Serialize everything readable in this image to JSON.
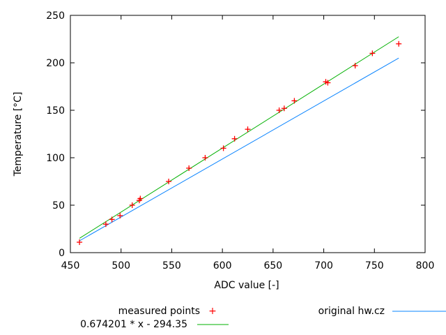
{
  "chart_data": {
    "type": "scatter",
    "title": "",
    "xlabel": "ADC value [-]",
    "ylabel": "Temperature [°C]",
    "xlim": [
      450,
      800
    ],
    "ylim": [
      0,
      250
    ],
    "xticks": [
      450,
      500,
      550,
      600,
      650,
      700,
      750,
      800
    ],
    "yticks": [
      0,
      50,
      100,
      150,
      200,
      250
    ],
    "grid": false,
    "legend_position": "bottom",
    "series": [
      {
        "name": "measured points",
        "kind": "points",
        "color": "#ff0000",
        "points": [
          [
            459,
            11
          ],
          [
            485,
            30
          ],
          [
            491,
            35
          ],
          [
            499,
            39
          ],
          [
            511,
            50
          ],
          [
            518,
            55
          ],
          [
            519,
            57
          ],
          [
            547,
            75
          ],
          [
            567,
            89
          ],
          [
            583,
            100
          ],
          [
            601,
            110
          ],
          [
            612,
            120
          ],
          [
            625,
            130
          ],
          [
            656,
            150
          ],
          [
            661,
            152
          ],
          [
            671,
            160
          ],
          [
            702,
            180
          ],
          [
            704,
            179
          ],
          [
            731,
            197
          ],
          [
            748,
            210
          ],
          [
            774,
            220
          ]
        ]
      },
      {
        "name": "original hw.cz",
        "kind": "line",
        "color": "#0a84ff",
        "points": [
          [
            459,
            12.5
          ],
          [
            774,
            205
          ]
        ]
      },
      {
        "name": "0.674201 * x - 294.35",
        "kind": "line",
        "color": "#00b000",
        "slope": 0.674201,
        "intercept": -294.35,
        "x_range": [
          459,
          774
        ]
      }
    ]
  }
}
